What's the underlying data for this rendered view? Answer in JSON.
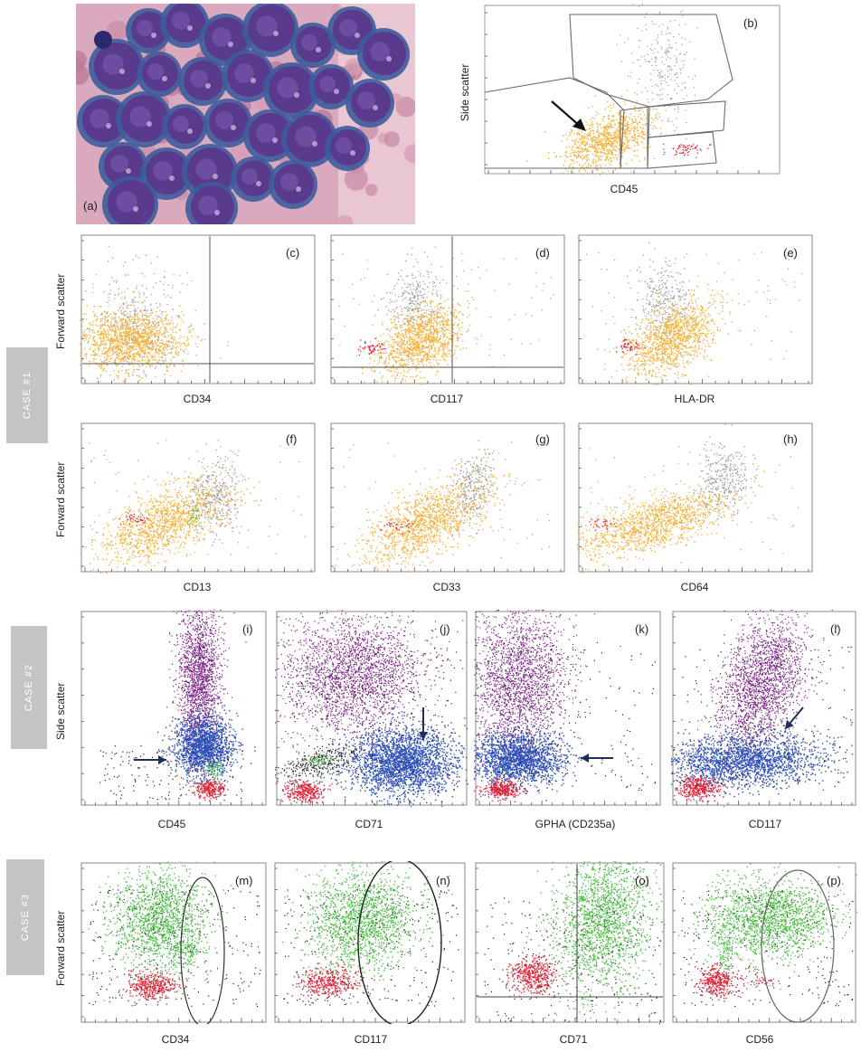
{
  "colors": {
    "orange": "#f7b23b",
    "grey": "#9b9ea8",
    "red": "#e4253a",
    "purple": "#7c2186",
    "blue": "#2d4fb8",
    "green": "#43b83a",
    "black": "#222222",
    "tab": "#c4c4c4"
  },
  "micro": {
    "label": "(a)"
  },
  "panel_b": {
    "label": "(b)",
    "xlabel": "CD45",
    "ylabel": "Side scatter"
  },
  "cases": {
    "case1": "CASE #1",
    "case2": "CASE #2",
    "case3": "CASE #3"
  },
  "row1": {
    "ylabel": "Forward scatter",
    "panels": [
      {
        "label": "(c)",
        "xlabel": "CD34"
      },
      {
        "label": "(d)",
        "xlabel": "CD117"
      },
      {
        "label": "(e)",
        "xlabel": "HLA-DR"
      }
    ]
  },
  "row2": {
    "ylabel": "Forward scatter",
    "panels": [
      {
        "label": "(f)",
        "xlabel": "CD13"
      },
      {
        "label": "(g)",
        "xlabel": "CD33"
      },
      {
        "label": "(h)",
        "xlabel": "CD64"
      }
    ]
  },
  "row3": {
    "ylabel": "Side scatter",
    "panels": [
      {
        "label": "(i)",
        "xlabel": "CD45"
      },
      {
        "label": "(j)",
        "xlabel": "CD71"
      },
      {
        "label": "(k)",
        "xlabel": "GPHA (CD235a)"
      },
      {
        "label": "(l)",
        "xlabel": "CD117"
      }
    ]
  },
  "row4": {
    "ylabel": "Forward scatter",
    "panels": [
      {
        "label": "(m)",
        "xlabel": "CD34"
      },
      {
        "label": "(n)",
        "xlabel": "CD117"
      },
      {
        "label": "(o)",
        "xlabel": "CD71"
      },
      {
        "label": "(p)",
        "xlabel": "CD56"
      }
    ]
  }
}
